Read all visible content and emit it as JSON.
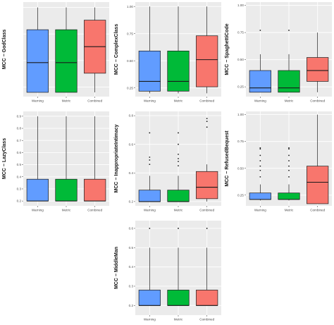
{
  "colors": {
    "panel_bg": "#ebebeb",
    "grid": "#ffffff",
    "outline": "#1a1a1a",
    "text": "#4d4d4d"
  },
  "chart_data": [
    {
      "type": "box",
      "ylabel": "MCC − GodClass",
      "categories": [
        "Warning",
        "Metric",
        "Combined"
      ],
      "colors": [
        "#619cff",
        "#00ba38",
        "#f8766d"
      ],
      "ylim": [
        0.16,
        1.05
      ],
      "yticks": [],
      "grid": true,
      "boxes": [
        {
          "min": 0.2,
          "q1": 0.2,
          "median": 0.48,
          "q3": 0.79,
          "max": 1.0,
          "outliers": []
        },
        {
          "min": 0.2,
          "q1": 0.2,
          "median": 0.48,
          "q3": 0.79,
          "max": 1.0,
          "outliers": []
        },
        {
          "min": 0.2,
          "q1": 0.38,
          "median": 0.63,
          "q3": 0.88,
          "max": 1.0,
          "outliers": []
        }
      ]
    },
    {
      "type": "box",
      "ylabel": "MCC − ComplexClass",
      "categories": [
        "Warning",
        "Metric",
        "Combined"
      ],
      "colors": [
        "#619cff",
        "#00ba38",
        "#f8766d"
      ],
      "ylim": [
        0.17,
        1.04
      ],
      "yticks": [
        "1.00",
        "0.75",
        "0.50",
        "0.25"
      ],
      "grid": true,
      "boxes": [
        {
          "min": 0.2,
          "q1": 0.22,
          "median": 0.31,
          "q3": 0.59,
          "max": 1.0,
          "outliers": []
        },
        {
          "min": 0.2,
          "q1": 0.22,
          "median": 0.31,
          "q3": 0.59,
          "max": 1.0,
          "outliers": []
        },
        {
          "min": 0.2,
          "q1": 0.26,
          "median": 0.51,
          "q3": 0.73,
          "max": 1.0,
          "outliers": []
        }
      ]
    },
    {
      "type": "box",
      "ylabel": "MCC − SpaghettiCode",
      "categories": [
        "Warning",
        "Metric",
        "Combined"
      ],
      "colors": [
        "#619cff",
        "#00ba38",
        "#f8766d"
      ],
      "ylim": [
        0.16,
        1.03
      ],
      "yticks": [
        "1.00",
        "0.75",
        "0.50",
        "0.25"
      ],
      "grid": true,
      "boxes": [
        {
          "min": 0.2,
          "q1": 0.2,
          "median": 0.24,
          "q3": 0.4,
          "max": 0.55,
          "outliers": [
            0.77
          ]
        },
        {
          "min": 0.2,
          "q1": 0.2,
          "median": 0.24,
          "q3": 0.4,
          "max": 0.55,
          "outliers": [
            0.77
          ]
        },
        {
          "min": 0.2,
          "q1": 0.3,
          "median": 0.4,
          "q3": 0.52,
          "max": 0.75,
          "outliers": []
        }
      ]
    },
    {
      "type": "box",
      "ylabel": "MCC − LazyClass",
      "categories": [
        "Warning",
        "Metric",
        "Combined"
      ],
      "colors": [
        "#619cff",
        "#00ba38",
        "#f8766d"
      ],
      "ylim": [
        0.16,
        0.94
      ],
      "yticks": [
        "0.9",
        "0.8",
        "0.7",
        "0.6",
        "0.5",
        "0.4",
        "0.3",
        "0.2"
      ],
      "grid": true,
      "boxes": [
        {
          "min": 0.2,
          "q1": 0.2,
          "median": 0.2,
          "q3": 0.38,
          "max": 0.9,
          "outliers": []
        },
        {
          "min": 0.2,
          "q1": 0.2,
          "median": 0.2,
          "q3": 0.38,
          "max": 0.9,
          "outliers": []
        },
        {
          "min": 0.2,
          "q1": 0.2,
          "median": 0.2,
          "q3": 0.38,
          "max": 0.9,
          "outliers": []
        }
      ]
    },
    {
      "type": "box",
      "ylabel": "MCC − InappropriateIntimacy",
      "categories": [
        "Warning",
        "Metric",
        "Combined"
      ],
      "colors": [
        "#619cff",
        "#00ba38",
        "#f8766d"
      ],
      "ylim": [
        0.17,
        0.83
      ],
      "yticks": [
        "0.8",
        "0.6",
        "0.4",
        "0.2"
      ],
      "grid": true,
      "boxes": [
        {
          "min": 0.2,
          "q1": 0.2,
          "median": 0.2,
          "q3": 0.28,
          "max": 0.38,
          "outliers": [
            0.46,
            0.49,
            0.51,
            0.68
          ]
        },
        {
          "min": 0.2,
          "q1": 0.2,
          "median": 0.2,
          "q3": 0.28,
          "max": 0.38,
          "outliers": [
            0.45,
            0.48,
            0.5,
            0.53,
            0.6,
            0.68
          ]
        },
        {
          "min": 0.2,
          "q1": 0.22,
          "median": 0.3,
          "q3": 0.41,
          "max": 0.46,
          "outliers": [
            0.72,
            0.76,
            0.78
          ]
        }
      ]
    },
    {
      "type": "box",
      "ylabel": "MCC − RefusedBequest",
      "categories": [
        "Warning",
        "Metric",
        "Combined"
      ],
      "colors": [
        "#619cff",
        "#00ba38",
        "#f8766d"
      ],
      "ylim": [
        0.15,
        1.03
      ],
      "yticks": [
        "1.00",
        "0.75",
        "0.50",
        "0.25"
      ],
      "grid": true,
      "boxes": [
        {
          "min": 0.2,
          "q1": 0.21,
          "median": 0.21,
          "q3": 0.27,
          "max": 0.35,
          "outliers": [
            0.42,
            0.48,
            0.52,
            0.57,
            0.62,
            0.68,
            0.69
          ]
        },
        {
          "min": 0.2,
          "q1": 0.21,
          "median": 0.21,
          "q3": 0.27,
          "max": 0.35,
          "outliers": [
            0.42,
            0.48,
            0.52,
            0.57,
            0.62,
            0.68,
            0.69
          ]
        },
        {
          "min": 0.17,
          "q1": 0.17,
          "median": 0.37,
          "q3": 0.52,
          "max": 1.0,
          "outliers": []
        }
      ]
    },
    {
      "type": "box",
      "ylabel": "MCC − MiddleMan",
      "categories": [
        "Warning",
        "Metric",
        "Combined"
      ],
      "colors": [
        "#619cff",
        "#00ba38",
        "#f8766d"
      ],
      "ylim": [
        0.15,
        0.64
      ],
      "yticks": [
        "0.6",
        "0.5",
        "0.4",
        "0.3",
        "0.2"
      ],
      "grid": true,
      "boxes": [
        {
          "min": 0.2,
          "q1": 0.2,
          "median": 0.2,
          "q3": 0.28,
          "max": 0.5,
          "outliers": [
            0.6
          ]
        },
        {
          "min": 0.2,
          "q1": 0.2,
          "median": 0.2,
          "q3": 0.28,
          "max": 0.5,
          "outliers": [
            0.6
          ]
        },
        {
          "min": 0.2,
          "q1": 0.2,
          "median": 0.2,
          "q3": 0.28,
          "max": 0.5,
          "outliers": [
            0.6
          ]
        }
      ]
    }
  ]
}
